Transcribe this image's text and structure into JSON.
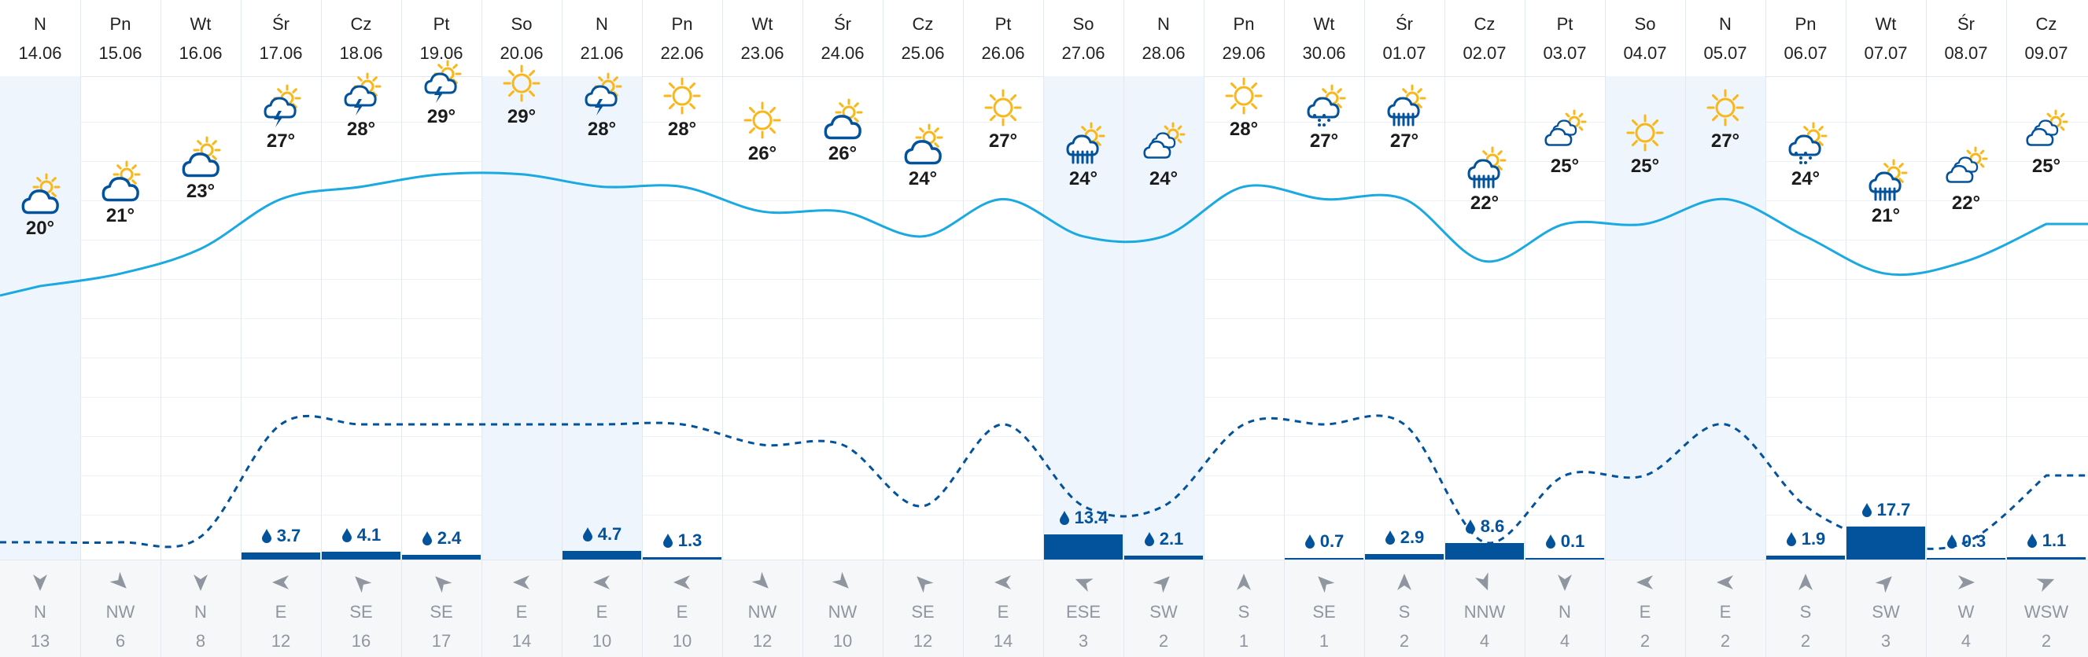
{
  "colors": {
    "temp_line": "#1ba9e1",
    "precip_line": "#03529c",
    "precip_bar": "#03529c",
    "sun": "#f9b719",
    "cloud": "#03529c",
    "weekend_shade": "#eef5fc"
  },
  "days": [
    {
      "day": "N",
      "date": "14.06",
      "icon": "partly-cloudy-icon",
      "temp": "20°",
      "temp_value": 20,
      "precip_value": null,
      "precip": "",
      "wind_dir": "N",
      "wind_speed": "13",
      "wind_deg": 0,
      "weekend": true
    },
    {
      "day": "Pn",
      "date": "15.06",
      "icon": "partly-cloudy-icon",
      "temp": "21°",
      "temp_value": 21,
      "precip_value": null,
      "precip": "",
      "wind_dir": "NW",
      "wind_speed": "6",
      "wind_deg": 315,
      "weekend": false
    },
    {
      "day": "Wt",
      "date": "16.06",
      "icon": "partly-cloudy-icon",
      "temp": "23°",
      "temp_value": 23,
      "precip_value": null,
      "precip": "",
      "wind_dir": "N",
      "wind_speed": "8",
      "wind_deg": 0,
      "weekend": false
    },
    {
      "day": "Śr",
      "date": "17.06",
      "icon": "sun-thunderstorm-icon",
      "temp": "27°",
      "temp_value": 27,
      "precip_value": 3.7,
      "precip": "3.7",
      "wind_dir": "E",
      "wind_speed": "12",
      "wind_deg": 90,
      "weekend": false
    },
    {
      "day": "Cz",
      "date": "18.06",
      "icon": "sun-thunderstorm-icon",
      "temp": "28°",
      "temp_value": 28,
      "precip_value": 4.1,
      "precip": "4.1",
      "wind_dir": "SE",
      "wind_speed": "16",
      "wind_deg": 135,
      "weekend": false
    },
    {
      "day": "Pt",
      "date": "19.06",
      "icon": "sun-thunderstorm-icon",
      "temp": "29°",
      "temp_value": 29,
      "precip_value": 2.4,
      "precip": "2.4",
      "wind_dir": "SE",
      "wind_speed": "17",
      "wind_deg": 135,
      "weekend": false
    },
    {
      "day": "So",
      "date": "20.06",
      "icon": "sun-icon",
      "temp": "29°",
      "temp_value": 29,
      "precip_value": null,
      "precip": "",
      "wind_dir": "E",
      "wind_speed": "14",
      "wind_deg": 90,
      "weekend": true
    },
    {
      "day": "N",
      "date": "21.06",
      "icon": "sun-thunderstorm-icon",
      "temp": "28°",
      "temp_value": 28,
      "precip_value": 4.7,
      "precip": "4.7",
      "wind_dir": "E",
      "wind_speed": "10",
      "wind_deg": 90,
      "weekend": true
    },
    {
      "day": "Pn",
      "date": "22.06",
      "icon": "sun-icon",
      "temp": "28°",
      "temp_value": 28,
      "precip_value": 1.3,
      "precip": "1.3",
      "wind_dir": "E",
      "wind_speed": "10",
      "wind_deg": 90,
      "weekend": false
    },
    {
      "day": "Wt",
      "date": "23.06",
      "icon": "sun-icon",
      "temp": "26°",
      "temp_value": 26,
      "precip_value": null,
      "precip": "",
      "wind_dir": "NW",
      "wind_speed": "12",
      "wind_deg": 315,
      "weekend": false
    },
    {
      "day": "Śr",
      "date": "24.06",
      "icon": "partly-cloudy-icon",
      "temp": "26°",
      "temp_value": 26,
      "precip_value": null,
      "precip": "",
      "wind_dir": "NW",
      "wind_speed": "10",
      "wind_deg": 315,
      "weekend": false
    },
    {
      "day": "Cz",
      "date": "25.06",
      "icon": "partly-cloudy-icon",
      "temp": "24°",
      "temp_value": 24,
      "precip_value": null,
      "precip": "",
      "wind_dir": "SE",
      "wind_speed": "12",
      "wind_deg": 135,
      "weekend": false
    },
    {
      "day": "Pt",
      "date": "26.06",
      "icon": "sun-icon",
      "temp": "27°",
      "temp_value": 27,
      "precip_value": null,
      "precip": "",
      "wind_dir": "E",
      "wind_speed": "14",
      "wind_deg": 90,
      "weekend": false
    },
    {
      "day": "So",
      "date": "27.06",
      "icon": "sun-rain-icon",
      "temp": "24°",
      "temp_value": 24,
      "precip_value": 13.4,
      "precip": "13.4",
      "wind_dir": "ESE",
      "wind_speed": "3",
      "wind_deg": 112,
      "weekend": true
    },
    {
      "day": "N",
      "date": "28.06",
      "icon": "sun-clouds-icon",
      "temp": "24°",
      "temp_value": 24,
      "precip_value": 2.1,
      "precip": "2.1",
      "wind_dir": "SW",
      "wind_speed": "2",
      "wind_deg": 225,
      "weekend": true
    },
    {
      "day": "Pn",
      "date": "29.06",
      "icon": "sun-icon",
      "temp": "28°",
      "temp_value": 28,
      "precip_value": null,
      "precip": "",
      "wind_dir": "S",
      "wind_speed": "1",
      "wind_deg": 180,
      "weekend": false
    },
    {
      "day": "Wt",
      "date": "30.06",
      "icon": "sun-showers-icon",
      "temp": "27°",
      "temp_value": 27,
      "precip_value": 0.7,
      "precip": "0.7",
      "wind_dir": "SE",
      "wind_speed": "1",
      "wind_deg": 135,
      "weekend": false
    },
    {
      "day": "Śr",
      "date": "01.07",
      "icon": "sun-rain-icon",
      "temp": "27°",
      "temp_value": 27,
      "precip_value": 2.9,
      "precip": "2.9",
      "wind_dir": "S",
      "wind_speed": "2",
      "wind_deg": 180,
      "weekend": false
    },
    {
      "day": "Cz",
      "date": "02.07",
      "icon": "sun-rain-icon",
      "temp": "22°",
      "temp_value": 22,
      "precip_value": 8.6,
      "precip": "8.6",
      "wind_dir": "NNW",
      "wind_speed": "4",
      "wind_deg": 338,
      "weekend": false
    },
    {
      "day": "Pt",
      "date": "03.07",
      "icon": "sun-clouds-icon",
      "temp": "25°",
      "temp_value": 25,
      "precip_value": 0.1,
      "precip": "0.1",
      "wind_dir": "N",
      "wind_speed": "4",
      "wind_deg": 0,
      "weekend": false
    },
    {
      "day": "So",
      "date": "04.07",
      "icon": "sun-icon",
      "temp": "25°",
      "temp_value": 25,
      "precip_value": null,
      "precip": "",
      "wind_dir": "E",
      "wind_speed": "2",
      "wind_deg": 90,
      "weekend": true
    },
    {
      "day": "N",
      "date": "05.07",
      "icon": "sun-icon",
      "temp": "27°",
      "temp_value": 27,
      "precip_value": null,
      "precip": "",
      "wind_dir": "E",
      "wind_speed": "2",
      "wind_deg": 90,
      "weekend": true
    },
    {
      "day": "Pn",
      "date": "06.07",
      "icon": "sun-showers-icon",
      "temp": "24°",
      "temp_value": 24,
      "precip_value": 1.9,
      "precip": "1.9",
      "wind_dir": "S",
      "wind_speed": "2",
      "wind_deg": 180,
      "weekend": false
    },
    {
      "day": "Wt",
      "date": "07.07",
      "icon": "sun-rain-icon",
      "temp": "21°",
      "temp_value": 21,
      "precip_value": 17.7,
      "precip": "17.7",
      "wind_dir": "SW",
      "wind_speed": "3",
      "wind_deg": 225,
      "weekend": false
    },
    {
      "day": "Śr",
      "date": "08.07",
      "icon": "sun-clouds-icon",
      "temp": "22°",
      "temp_value": 22,
      "precip_value": 0.3,
      "precip": "0.3",
      "wind_dir": "W",
      "wind_speed": "4",
      "wind_deg": 270,
      "weekend": false
    },
    {
      "day": "Cz",
      "date": "09.07",
      "icon": "sun-clouds-icon",
      "temp": "25°",
      "temp_value": 25,
      "precip_value": 1.1,
      "precip": "1.1",
      "wind_dir": "WSW",
      "wind_speed": "2",
      "wind_deg": 248,
      "weekend": false
    }
  ]
}
